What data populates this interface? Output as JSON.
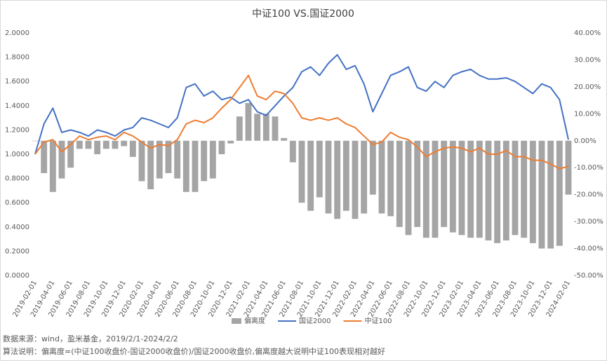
{
  "chart_data": {
    "type": "combo",
    "title": "中证100 VS.国证2000",
    "categories": [
      "2019-02-01",
      null,
      "2019-04-01",
      null,
      "2019-06-01",
      null,
      "2019-08-01",
      null,
      "2019-10-01",
      null,
      "2019-12-01",
      null,
      "2020-02-01",
      null,
      "2020-04-01",
      null,
      "2020-06-01",
      null,
      "2020-08-01",
      null,
      "2020-10-01",
      null,
      "2020-12-01",
      null,
      "2021-02-01",
      null,
      "2021-04-01",
      null,
      "2021-06-01",
      null,
      "2021-08-01",
      null,
      "2021-10-01",
      null,
      "2021-12-01",
      null,
      "2022-02-01",
      null,
      "2022-04-01",
      null,
      "2022-06-01",
      null,
      "2022-08-01",
      null,
      "2022-10-01",
      null,
      "2022-12-01",
      null,
      "2023-02-01",
      null,
      "2023-04-01",
      null,
      "2023-06-01",
      null,
      "2023-08-01",
      null,
      "2023-10-01",
      null,
      "2023-12-01",
      null,
      "2024-02-01"
    ],
    "series": [
      {
        "name": "偏离度",
        "type": "bar",
        "axis": "y2",
        "color": "#a5a5a5",
        "values": [
          0,
          -12,
          -19,
          -14,
          -10,
          -3,
          -3,
          -5,
          -3,
          -3,
          -2,
          -6,
          -15,
          -18,
          -14,
          -12,
          -14,
          -19,
          -19,
          -15,
          -14,
          -5,
          -1,
          9,
          14,
          10,
          10,
          9,
          1,
          -8,
          -23,
          -26,
          -21,
          -27,
          -29,
          -26,
          -29,
          -27,
          -20,
          -27,
          -28,
          -32,
          -35,
          -32,
          -36,
          -36,
          -32,
          -34,
          -35,
          -36,
          -36,
          -37,
          -38,
          -37,
          -35,
          -36,
          -38,
          -40,
          -40,
          -39,
          -20
        ]
      },
      {
        "name": "国证2000",
        "type": "line",
        "color": "#4472c4",
        "values": [
          1.0,
          1.25,
          1.38,
          1.18,
          1.2,
          1.18,
          1.15,
          1.2,
          1.18,
          1.15,
          1.2,
          1.22,
          1.3,
          1.28,
          1.25,
          1.22,
          1.3,
          1.55,
          1.58,
          1.48,
          1.52,
          1.45,
          1.47,
          1.42,
          1.45,
          1.35,
          1.32,
          1.4,
          1.48,
          1.55,
          1.68,
          1.72,
          1.65,
          1.75,
          1.82,
          1.7,
          1.73,
          1.58,
          1.35,
          1.5,
          1.65,
          1.68,
          1.72,
          1.55,
          1.52,
          1.6,
          1.55,
          1.65,
          1.68,
          1.7,
          1.65,
          1.62,
          1.62,
          1.63,
          1.6,
          1.55,
          1.5,
          1.58,
          1.55,
          1.45,
          1.12
        ]
      },
      {
        "name": "中证100",
        "type": "line",
        "color": "#ed7d31",
        "values": [
          1.0,
          1.1,
          1.12,
          1.02,
          1.08,
          1.15,
          1.12,
          1.14,
          1.15,
          1.12,
          1.18,
          1.15,
          1.1,
          1.05,
          1.08,
          1.07,
          1.12,
          1.25,
          1.28,
          1.26,
          1.3,
          1.38,
          1.45,
          1.55,
          1.65,
          1.48,
          1.45,
          1.52,
          1.5,
          1.42,
          1.3,
          1.28,
          1.3,
          1.28,
          1.3,
          1.25,
          1.22,
          1.15,
          1.08,
          1.1,
          1.18,
          1.14,
          1.12,
          1.06,
          0.98,
          1.02,
          1.05,
          1.06,
          1.05,
          1.02,
          1.05,
          1.0,
          1.0,
          1.03,
          0.98,
          0.98,
          0.95,
          0.95,
          0.92,
          0.88,
          0.9
        ]
      }
    ],
    "ylim": [
      0,
      2
    ],
    "yticks": [
      {
        "value": 0,
        "label": "0.0000"
      },
      {
        "value": 0.2,
        "label": "0.2000"
      },
      {
        "value": 0.4,
        "label": "0.4000"
      },
      {
        "value": 0.6,
        "label": "0.6000"
      },
      {
        "value": 0.8,
        "label": "0.8000"
      },
      {
        "value": 1,
        "label": "1.0000"
      },
      {
        "value": 1.2,
        "label": "1.2000"
      },
      {
        "value": 1.4,
        "label": "1.4000"
      },
      {
        "value": 1.6,
        "label": "1.6000"
      },
      {
        "value": 1.8,
        "label": "1.8000"
      },
      {
        "value": 2,
        "label": "2.0000"
      }
    ],
    "y2lim": [
      -50,
      40
    ],
    "y2ticks": [
      {
        "value": -50,
        "label": "-50.00%"
      },
      {
        "value": -40,
        "label": "-40.00%"
      },
      {
        "value": -30,
        "label": "-30.00%"
      },
      {
        "value": -20,
        "label": "-20.00%"
      },
      {
        "value": -10,
        "label": "-10.00%"
      },
      {
        "value": 0,
        "label": "0.00%"
      },
      {
        "value": 10,
        "label": "10.00%"
      },
      {
        "value": 20,
        "label": "20.00%"
      },
      {
        "value": 30,
        "label": "30.00%"
      },
      {
        "value": 40,
        "label": "40.00%"
      }
    ],
    "grid": false,
    "legend": "bottom",
    "notes": [
      "数据来源：wind，盈米基金，2019/2/1-2024/2/2",
      "算法说明：偏离度=(中证100收盘价-国证2000收盘价)/国证2000收盘价,偏离度越大说明中证100表现相对越好"
    ]
  }
}
